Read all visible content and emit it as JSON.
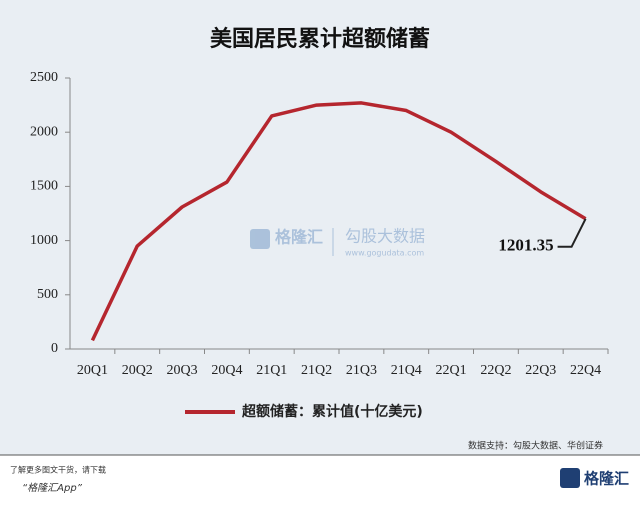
{
  "chart_data": {
    "type": "line",
    "title": "美国居民累计超额储蓄",
    "categories": [
      "20Q1",
      "20Q2",
      "20Q3",
      "20Q4",
      "21Q1",
      "21Q2",
      "21Q3",
      "21Q4",
      "22Q1",
      "22Q2",
      "22Q3",
      "22Q4"
    ],
    "series": [
      {
        "name": "超额储蓄：累计值(十亿美元)",
        "color": "#b5262e",
        "values": [
          80,
          950,
          1310,
          1540,
          2150,
          2250,
          2270,
          2200,
          2000,
          1730,
          1450,
          1201.35
        ]
      }
    ],
    "ylim": [
      0,
      2500
    ],
    "yticks": [
      0,
      500,
      1000,
      1500,
      2000,
      2500
    ],
    "grid": false
  },
  "watermark": {
    "brand": "格隆汇",
    "partner": "勾股大数据",
    "url": "www.gogudata.com"
  },
  "source": "数据支持：勾股大数据、华创证券",
  "footer": {
    "prompt": "了解更多图文干货，请下载",
    "app": "“格隆汇App”",
    "logo": "格隆汇"
  }
}
